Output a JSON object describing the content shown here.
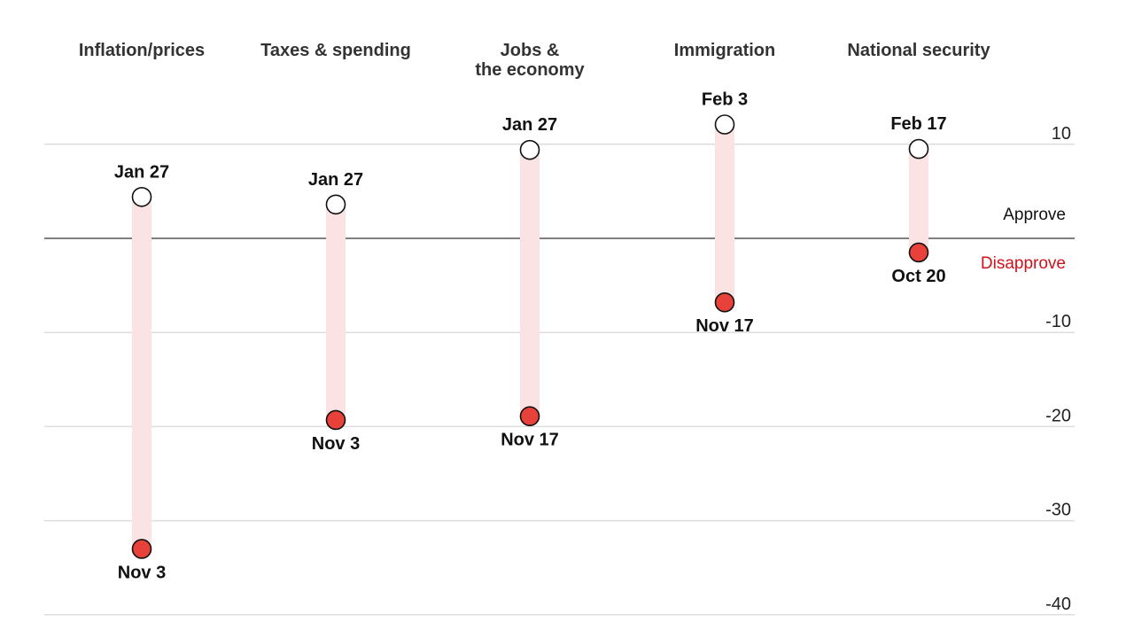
{
  "chart_data": {
    "type": "dumbbell",
    "title": "",
    "xlabel": "",
    "ylabel": "",
    "ylim": [
      -40,
      12
    ],
    "yticks": [
      10,
      -10,
      -20,
      -30,
      -40
    ],
    "grid": true,
    "zero_line_labels": {
      "above": "Approve",
      "below": "Disapprove"
    },
    "categories": [
      {
        "name": "Inflation/prices",
        "name_lines": [
          "Inflation/prices"
        ],
        "start": {
          "label": "Jan 27",
          "value": 4.4
        },
        "end": {
          "label": "Nov 3",
          "value": -33.0
        }
      },
      {
        "name": "Taxes & spending",
        "name_lines": [
          "Taxes & spending"
        ],
        "start": {
          "label": "Jan 27",
          "value": 3.6
        },
        "end": {
          "label": "Nov 3",
          "value": -19.3
        }
      },
      {
        "name": "Jobs & the economy",
        "name_lines": [
          "Jobs &",
          "the economy"
        ],
        "start": {
          "label": "Jan 27",
          "value": 9.4
        },
        "end": {
          "label": "Nov 17",
          "value": -18.9
        }
      },
      {
        "name": "Immigration",
        "name_lines": [
          "Immigration"
        ],
        "start": {
          "label": "Feb 3",
          "value": 12.1
        },
        "end": {
          "label": "Nov 17",
          "value": -6.8
        }
      },
      {
        "name": "National security",
        "name_lines": [
          "National security"
        ],
        "start": {
          "label": "Feb 17",
          "value": 9.5
        },
        "end": {
          "label": "Oct 20",
          "value": -1.5
        }
      }
    ],
    "colors": {
      "start_fill": "#ffffff",
      "end_fill": "#e8413a",
      "bar": "#fbe3e3",
      "disapprove_text": "#d0121b",
      "grid": "#dddddd",
      "zero_line": "#555555"
    }
  }
}
